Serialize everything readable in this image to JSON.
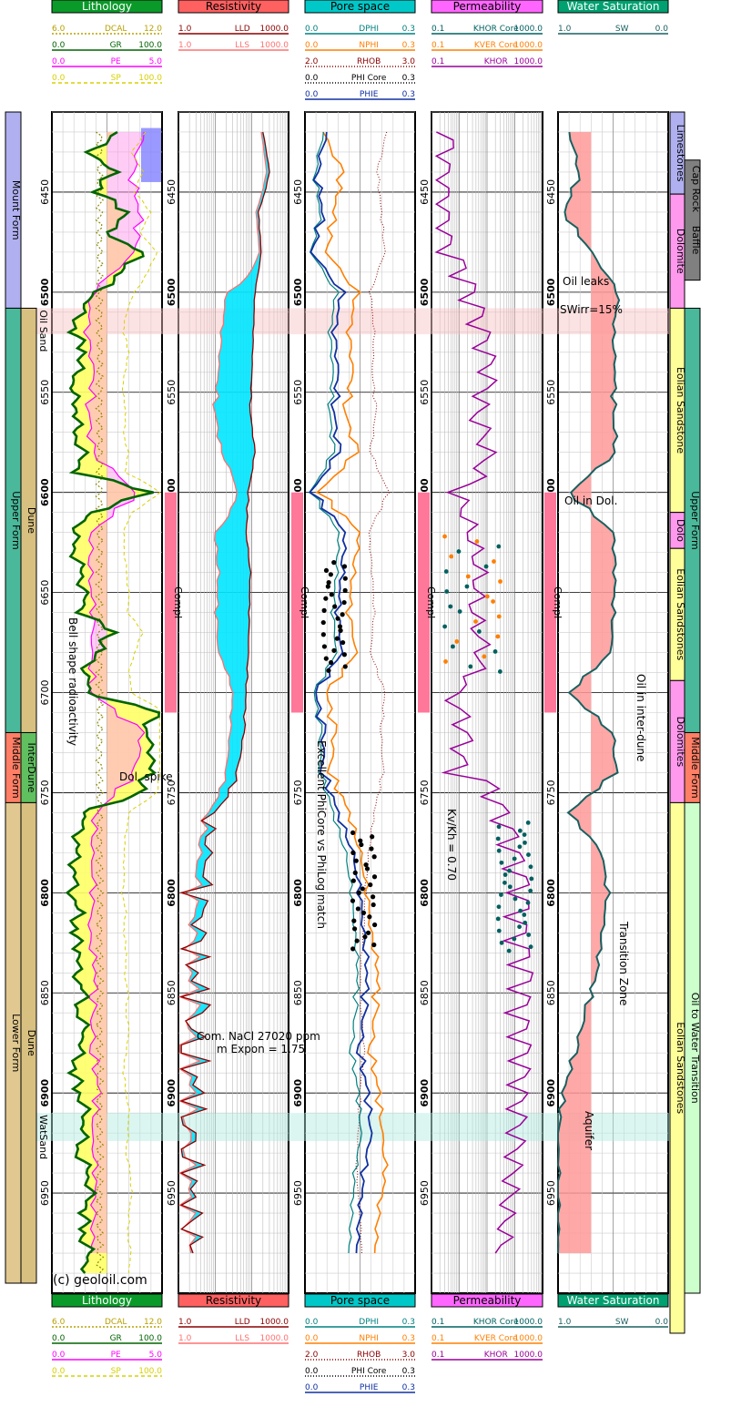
{
  "tracks": [
    {
      "id": "lith",
      "title": "Lithology",
      "header_color": "#0a9a2a",
      "curves": [
        {
          "name": "DCAL",
          "min": "6.0",
          "max": "12.0",
          "color": "#b8a000",
          "dash": "2,2"
        },
        {
          "name": "GR",
          "min": "0.0",
          "max": "100.0",
          "color": "#006400",
          "dash": ""
        },
        {
          "name": "PE",
          "min": "0.0",
          "max": "5.0",
          "color": "#ff00ff",
          "dash": ""
        },
        {
          "name": "SP",
          "min": "0.0",
          "max": "100.0",
          "color": "#d8d000",
          "dash": "4,3"
        }
      ]
    },
    {
      "id": "res",
      "title": "Resistivity",
      "header_color": "#ff6060",
      "curves": [
        {
          "name": "LLD",
          "min": "1.0",
          "max": "1000.0",
          "color": "#8b0000",
          "dash": ""
        },
        {
          "name": "LLS",
          "min": "1.0",
          "max": "1000.0",
          "color": "#ff7070",
          "dash": ""
        }
      ]
    },
    {
      "id": "por",
      "title": "Pore space",
      "header_color": "#00c8c8",
      "curves": [
        {
          "name": "DPHI",
          "min": "0.0",
          "max": "0.3",
          "color": "#008080",
          "dash": ""
        },
        {
          "name": "NPHI",
          "min": "0.0",
          "max": "0.3",
          "color": "#ff7f00",
          "dash": ""
        },
        {
          "name": "RHOB",
          "min": "2.0",
          "max": "3.0",
          "color": "#8b0000",
          "dash": "1,2"
        },
        {
          "name": "PHI_Core",
          "min": "0.0",
          "max": "0.3",
          "color": "#000000",
          "dash": "1,2"
        },
        {
          "name": "PHIE",
          "min": "0.0",
          "max": "0.3",
          "color": "#1030a0",
          "dash": ""
        }
      ]
    },
    {
      "id": "perm",
      "title": "Permeability",
      "header_color": "#ff66ff",
      "curves": [
        {
          "name": "KHOR_Core",
          "min": "0.1",
          "max": "1000.0",
          "color": "#006060",
          "dash": ""
        },
        {
          "name": "KVER_Core",
          "min": "0.1",
          "max": "1000.0",
          "color": "#ff7f00",
          "dash": ""
        },
        {
          "name": "KHOR",
          "min": "0.1",
          "max": "1000.0",
          "color": "#990099",
          "dash": ""
        }
      ]
    },
    {
      "id": "sw",
      "title": "Water Saturation",
      "header_color": "#00a070",
      "curves": [
        {
          "name": "SW",
          "min": "1.0",
          "max": "0.0",
          "color": "#1a6060",
          "dash": ""
        }
      ]
    }
  ],
  "chart_data": {
    "type": "line",
    "x_axis": "depth",
    "depth_range": [
      6410,
      7000
    ],
    "depth_ticks": [
      6450,
      6500,
      6550,
      6600,
      6650,
      6700,
      6750,
      6800,
      6850,
      6900,
      6950
    ],
    "GR": {
      "depth": [
        6420,
        6430,
        6440,
        6450,
        6460,
        6470,
        6480,
        6490,
        6500,
        6510,
        6520,
        6530,
        6540,
        6550,
        6560,
        6570,
        6580,
        6590,
        6600,
        6610,
        6620,
        6630,
        6640,
        6650,
        6660,
        6670,
        6680,
        6690,
        6700,
        6710,
        6720,
        6730,
        6740,
        6750,
        6760,
        6770,
        6780,
        6790,
        6800,
        6810,
        6820,
        6830,
        6840,
        6850,
        6860,
        6870,
        6880,
        6890,
        6900,
        6910,
        6920,
        6930,
        6940,
        6950,
        6960,
        6970,
        6980,
        6990
      ],
      "value": [
        60,
        35,
        55,
        40,
        70,
        50,
        80,
        65,
        40,
        25,
        20,
        30,
        22,
        18,
        25,
        20,
        28,
        24,
        90,
        35,
        20,
        22,
        25,
        30,
        28,
        55,
        40,
        30,
        35,
        95,
        85,
        92,
        88,
        80,
        30,
        25,
        20,
        22,
        18,
        24,
        20,
        26,
        22,
        28,
        25,
        30,
        24,
        20,
        25,
        30,
        28,
        25,
        32,
        35,
        30,
        28,
        33,
        30
      ]
    },
    "PE": {
      "depth": [
        6420,
        6440,
        6460,
        6480,
        6500,
        6520,
        6540,
        6560,
        6580,
        6600,
        6620,
        6640,
        6660,
        6680,
        6700,
        6720,
        6740,
        6760,
        6780,
        6800,
        6820,
        6840,
        6860,
        6880,
        6900,
        6920,
        6940,
        6960,
        6980
      ],
      "value": [
        4.2,
        3.6,
        4.0,
        3.8,
        1.8,
        1.6,
        1.9,
        1.7,
        1.8,
        3.9,
        1.8,
        1.7,
        1.9,
        1.8,
        1.8,
        4.1,
        3.8,
        2.0,
        1.8,
        1.9,
        1.7,
        2.0,
        1.8,
        1.9,
        2.1,
        1.8,
        2.0,
        1.9,
        1.8
      ]
    },
    "LLD": {
      "depth": [
        6420,
        6440,
        6460,
        6480,
        6500,
        6520,
        6540,
        6560,
        6580,
        6600,
        6620,
        6640,
        6660,
        6680,
        6700,
        6720,
        6740,
        6760,
        6780,
        6800,
        6820,
        6840,
        6860,
        6880,
        6900,
        6920,
        6940,
        6960,
        6980
      ],
      "value": [
        200,
        300,
        150,
        180,
        120,
        110,
        100,
        90,
        120,
        80,
        70,
        90,
        85,
        80,
        70,
        60,
        40,
        8,
        6,
        5,
        4,
        3.5,
        3,
        2.6,
        2.2,
        2,
        2,
        2.2,
        2.5
      ]
    },
    "LLS": {
      "depth": [
        6420,
        6440,
        6460,
        6480,
        6500,
        6520,
        6540,
        6560,
        6580,
        6600,
        6620,
        6640,
        6660,
        6680,
        6700,
        6720,
        6740,
        6760,
        6780,
        6800,
        6820,
        6840,
        6860,
        6880,
        6900,
        6920,
        6940,
        6960,
        6980
      ],
      "value": [
        180,
        250,
        130,
        160,
        20,
        15,
        12,
        10,
        14,
        40,
        10,
        12,
        11,
        12,
        30,
        25,
        20,
        6,
        3.5,
        3,
        2.6,
        2.4,
        2.2,
        2,
        1.9,
        1.8,
        1.8,
        2,
        2.2
      ]
    },
    "NPHI": {
      "depth": [
        6420,
        6440,
        6460,
        6480,
        6500,
        6520,
        6540,
        6560,
        6580,
        6600,
        6620,
        6640,
        6660,
        6680,
        6700,
        6720,
        6740,
        6760,
        6780,
        6800,
        6820,
        6840,
        6860,
        6880,
        6900,
        6920,
        6940,
        6960,
        6980
      ],
      "value": [
        0.05,
        0.1,
        0.08,
        0.06,
        0.14,
        0.12,
        0.13,
        0.11,
        0.14,
        0.04,
        0.15,
        0.13,
        0.12,
        0.14,
        0.06,
        0.08,
        0.07,
        0.12,
        0.15,
        0.17,
        0.18,
        0.2,
        0.19,
        0.18,
        0.2,
        0.21,
        0.22,
        0.2,
        0.19
      ]
    },
    "PHIE": {
      "depth": [
        6420,
        6440,
        6460,
        6480,
        6500,
        6520,
        6540,
        6560,
        6580,
        6600,
        6620,
        6640,
        6660,
        6680,
        6700,
        6720,
        6740,
        6760,
        6780,
        6800,
        6820,
        6840,
        6860,
        6880,
        6900,
        6920,
        6940,
        6960,
        6980
      ],
      "value": [
        0.06,
        0.03,
        0.05,
        0.02,
        0.1,
        0.08,
        0.09,
        0.08,
        0.09,
        0.02,
        0.11,
        0.1,
        0.09,
        0.1,
        0.03,
        0.05,
        0.05,
        0.09,
        0.13,
        0.15,
        0.16,
        0.17,
        0.16,
        0.15,
        0.17,
        0.18,
        0.16,
        0.15,
        0.14
      ]
    },
    "KHOR": {
      "depth": [
        6420,
        6440,
        6460,
        6480,
        6500,
        6520,
        6540,
        6560,
        6580,
        6600,
        6620,
        6640,
        6660,
        6680,
        6700,
        6720,
        6740,
        6760,
        6780,
        6800,
        6820,
        6840,
        6860,
        6880,
        6900,
        6920,
        6940,
        6960,
        6980
      ],
      "value": [
        0.5,
        0.3,
        0.3,
        0.4,
        3,
        8,
        15,
        5,
        12,
        0.8,
        3,
        6,
        4,
        8,
        0.6,
        2,
        1,
        40,
        120,
        250,
        180,
        300,
        200,
        250,
        180,
        150,
        100,
        60,
        40
      ]
    },
    "SW": {
      "depth": [
        6420,
        6440,
        6460,
        6480,
        6500,
        6520,
        6540,
        6560,
        6580,
        6600,
        6620,
        6640,
        6660,
        6680,
        6700,
        6720,
        6740,
        6760,
        6780,
        6800,
        6820,
        6840,
        6860,
        6880,
        6900,
        6920,
        6940,
        6960,
        6980
      ],
      "value": [
        0.9,
        0.8,
        0.95,
        0.7,
        0.45,
        0.5,
        0.48,
        0.5,
        0.47,
        0.9,
        0.5,
        0.48,
        0.5,
        0.52,
        0.9,
        0.5,
        0.48,
        0.9,
        0.6,
        0.55,
        0.6,
        0.65,
        0.75,
        0.85,
        0.95,
        1.0,
        1.0,
        1.0,
        1.0
      ]
    }
  },
  "formations_left": [
    {
      "name": "Mount Form",
      "top": 6410,
      "base": 6508,
      "color": "#b0b0f0"
    },
    {
      "name": "Upper Form",
      "top": 6508,
      "base": 6720,
      "color": "#4ab89a"
    },
    {
      "name": "Middle Form",
      "top": 6720,
      "base": 6755,
      "color": "#ff7f66"
    },
    {
      "name": "Lower Form",
      "top": 6755,
      "base": 6995,
      "color": "#e0c890"
    }
  ],
  "subunits_left": [
    {
      "name": "Dune",
      "top": 6508,
      "base": 6720,
      "color": "#d8c080"
    },
    {
      "name": "InterDune",
      "top": 6720,
      "base": 6755,
      "color": "#60c060"
    },
    {
      "name": "Dune",
      "top": 6755,
      "base": 6995,
      "color": "#d8c080"
    }
  ],
  "zones": [
    {
      "name": "Oil Sand",
      "top": 6508,
      "base": 6521,
      "color": "#f8c0c0"
    },
    {
      "name": "WatSand",
      "top": 6910,
      "base": 6924,
      "color": "#b0e8e0"
    }
  ],
  "compl": {
    "label": "Compl",
    "top": 6600,
    "base": 6710,
    "labels": [
      "6600",
      "6700"
    ]
  },
  "lithology_right": [
    {
      "name": "Limestones",
      "top": 6410,
      "base": 6451,
      "color": "#b0b0f0"
    },
    {
      "name": "Dolomite",
      "top": 6451,
      "base": 6508,
      "color": "#ff99ee"
    },
    {
      "name": "Eolian Sandstone",
      "top": 6508,
      "base": 6610,
      "color": "#ffff99"
    },
    {
      "name": "Dolo",
      "top": 6610,
      "base": 6628,
      "color": "#ff99ee"
    },
    {
      "name": "Eolian Sandstones",
      "top": 6628,
      "base": 6694,
      "color": "#ffff99"
    },
    {
      "name": "Dolomites",
      "top": 6694,
      "base": 6755,
      "color": "#ff99ee"
    },
    {
      "name": "Eolian Sandstones",
      "top": 6755,
      "base": 7020,
      "color": "#ffff99"
    }
  ],
  "caprock": {
    "name": "Cap Rock",
    "sub": "Baffle",
    "top": 6434,
    "base": 6494,
    "color": "#808080"
  },
  "formations_right": [
    {
      "name": "Upper Form",
      "top": 6508,
      "base": 6720,
      "color": "#4ab89a"
    },
    {
      "name": "Middle Form",
      "top": 6720,
      "base": 6755,
      "color": "#ff7f66"
    },
    {
      "name": "Oil to Water Transition",
      "top": 6755,
      "base": 7000,
      "color": "#ccffcc"
    }
  ],
  "annotations": {
    "bell": "Bell shape radioactivity",
    "dol_spike": "Dol. spike",
    "nacl": "Com. NaCl 27020 ppm",
    "m_expon": "m Expon = 1.75",
    "excellent": "Excellent PhiCore vs PhiLog match",
    "kvkh": "Kv/Kh = 0.70",
    "oil_leaks": "Oil leaks",
    "swirr": "SWirr=15%",
    "oil_dol": "Oil in Dol.",
    "oil_interdune": "Oil in inter-dune",
    "transition": "Transition Zone",
    "aquifer": "Aquifer",
    "copyright": "(c) geoloil.com"
  }
}
